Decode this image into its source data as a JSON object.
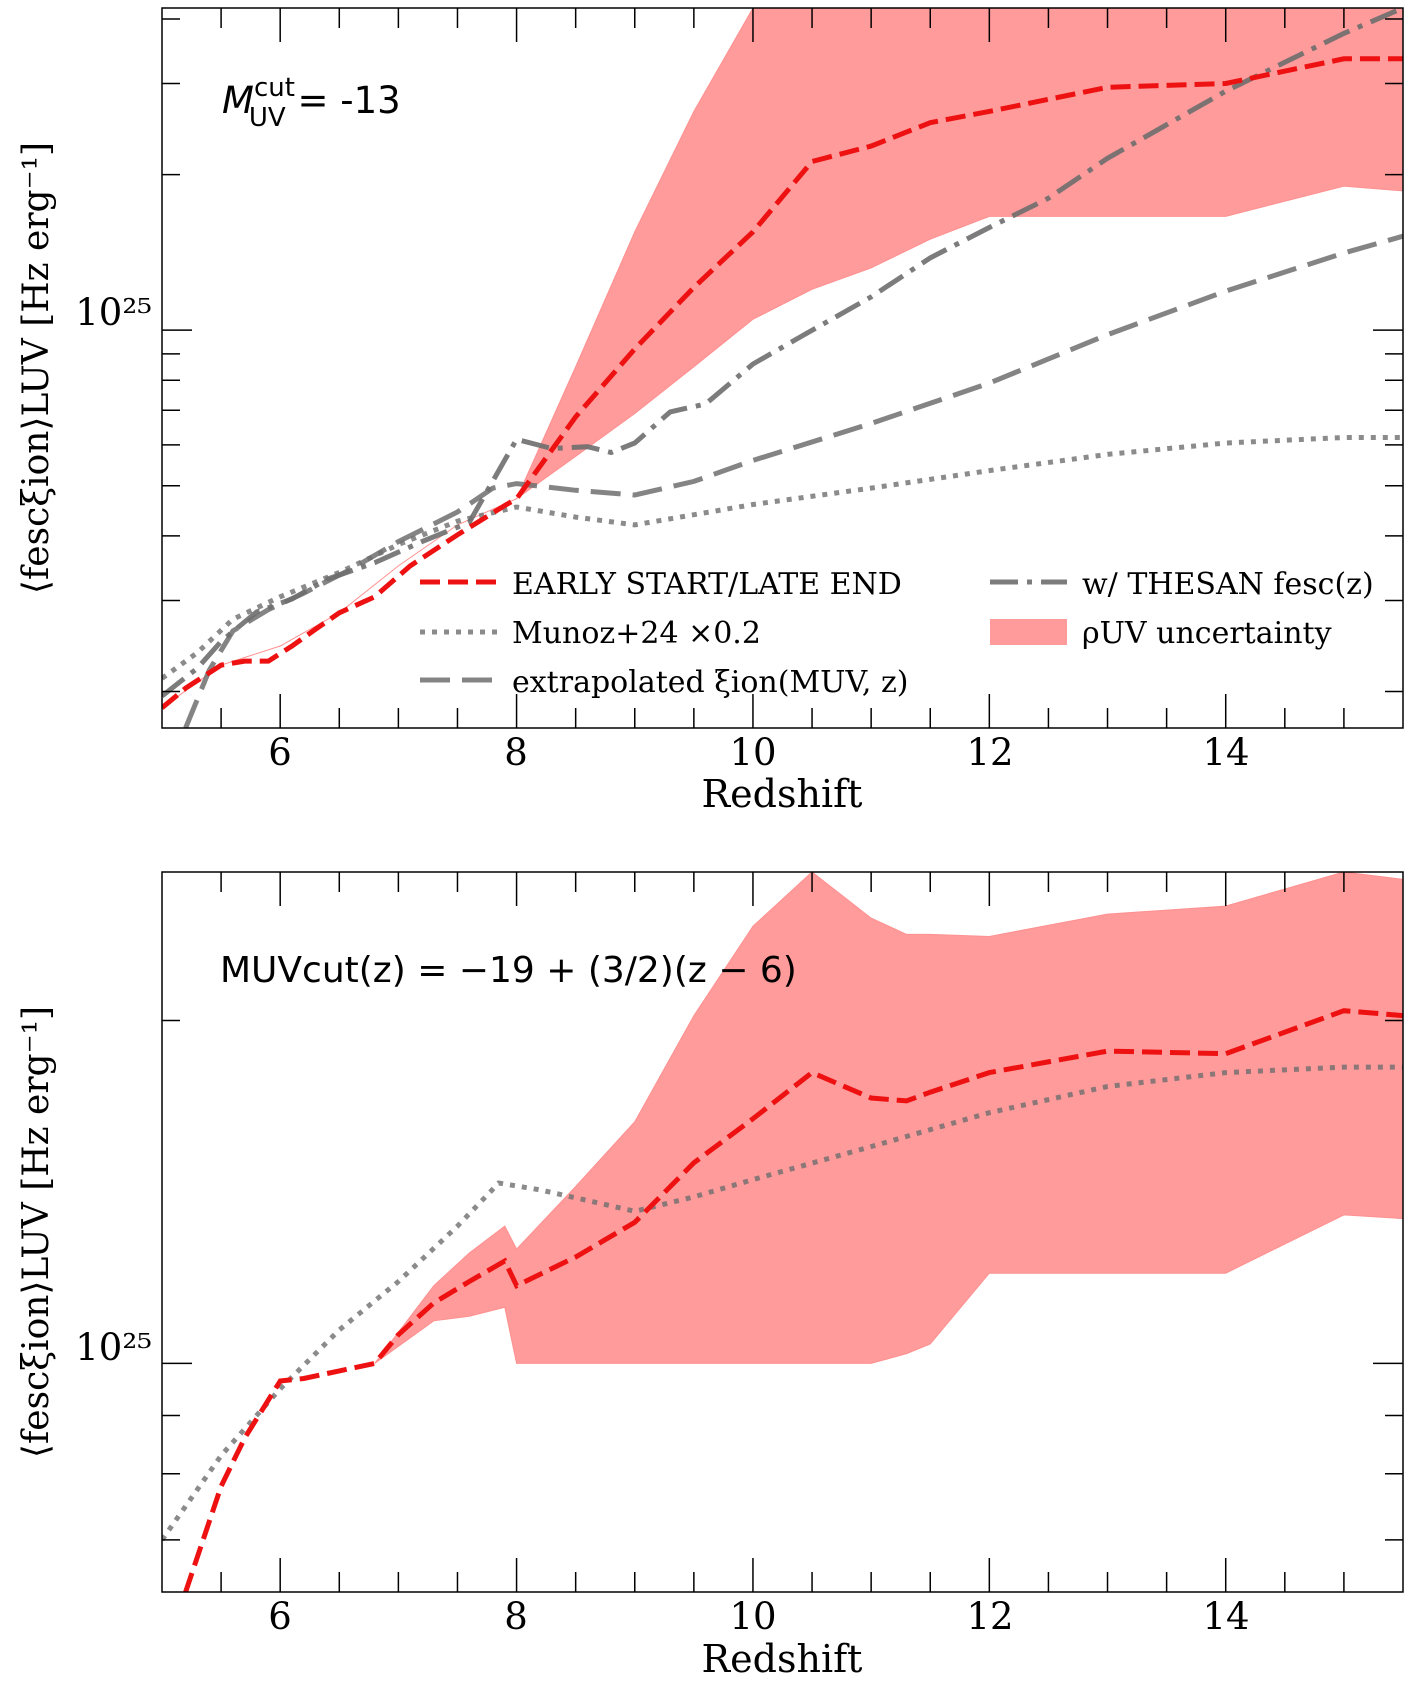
{
  "chart_data": [
    {
      "type": "line",
      "panel": "top",
      "annotation_main": "M",
      "annotation_sup": "cut",
      "annotation_sub": "UV",
      "annotation_rest": " = -13",
      "xlabel": "Redshift",
      "ylabel": "⟨fescξion⟩LUV [Hz erg⁻¹]",
      "xlim": [
        5,
        15.5
      ],
      "ylim": [
        1.7e+24,
        4.2e+25
      ],
      "yscale": "log",
      "xticks": [
        "6",
        "8",
        "10",
        "12",
        "14"
      ],
      "ytick_label": "10²⁵",
      "colors": {
        "fiducial": "#ee1111",
        "band": "#ff9090",
        "gray": "#7a7a7a"
      },
      "legend": [
        {
          "key": "fiducial",
          "label": "EARLY START/LATE END"
        },
        {
          "key": "munoz",
          "label": "Munoz+24 ×0.2"
        },
        {
          "key": "extrap",
          "label": "extrapolated ξion(MUV, z)"
        },
        {
          "key": "thesan",
          "label": "w/ THESAN fesc(z)"
        },
        {
          "key": "band",
          "label": "ρUV uncertainty"
        }
      ],
      "series": [
        {
          "name": "EARLY START/LATE END",
          "style": "red-dashed",
          "x": [
            5,
            5.2,
            5.5,
            5.7,
            5.9,
            6.1,
            6.3,
            6.5,
            6.8,
            7.1,
            7.5,
            7.9,
            8.0,
            8.5,
            9.0,
            9.5,
            10.0,
            10.5,
            11.0,
            11.5,
            12.0,
            13.0,
            14.0,
            15.0,
            15.5
          ],
          "y": [
            1.86e+24,
            2.03e+24,
            2.25e+24,
            2.29e+24,
            2.29e+24,
            2.45e+24,
            2.64e+24,
            2.84e+24,
            3.05e+24,
            3.5e+24,
            4.02e+24,
            4.58e+24,
            4.72e+24,
            6.8e+24,
            9.2e+24,
            1.21e+25,
            1.55e+25,
            2.12e+25,
            2.27e+25,
            2.52e+25,
            2.65e+25,
            2.95e+25,
            3e+25,
            3.35e+25,
            3.35e+25
          ]
        },
        {
          "name": "Munoz+24 ×0.2",
          "style": "gray-dotted",
          "x": [
            5,
            5.3,
            5.6,
            6.0,
            6.5,
            7.0,
            7.5,
            8.0,
            8.5,
            9.0,
            10.0,
            11.0,
            12.0,
            13.0,
            14.0,
            15.0,
            15.5
          ],
          "y": [
            2.12e+24,
            2.38e+24,
            2.76e+24,
            3.05e+24,
            3.4e+24,
            3.85e+24,
            4.27e+24,
            4.55e+24,
            4.35e+24,
            4.2e+24,
            4.6e+24,
            4.95e+24,
            5.35e+24,
            5.75e+24,
            6.05e+24,
            6.2e+24,
            6.2e+24
          ]
        },
        {
          "name": "extrapolated ξion(MUV, z)",
          "style": "gray-dashed",
          "x": [
            5.2,
            5.4,
            5.6,
            5.9,
            6.2,
            6.6,
            7.0,
            7.5,
            7.8,
            8.0,
            8.5,
            9.0,
            9.5,
            10.0,
            11.0,
            12.0,
            13.0,
            14.0,
            15.0,
            15.5
          ],
          "y": [
            1.7e+24,
            2.2e+24,
            2.62e+24,
            2.88e+24,
            3.1e+24,
            3.45e+24,
            3.9e+24,
            4.45e+24,
            4.95e+24,
            5.05e+24,
            4.9e+24,
            4.8e+24,
            5.1e+24,
            5.6e+24,
            6.6e+24,
            7.9e+24,
            9.8e+24,
            1.19e+25,
            1.41e+25,
            1.52e+25
          ]
        },
        {
          "name": "w/ THESAN fesc(z)",
          "style": "gray-dashdot",
          "x": [
            5,
            5.3,
            5.5,
            5.8,
            6.1,
            6.4,
            6.8,
            7.2,
            7.6,
            8.0,
            8.3,
            8.6,
            8.8,
            9.0,
            9.3,
            9.6,
            10.0,
            10.4,
            11.0,
            11.5,
            12.0,
            12.5,
            13.0,
            14.0,
            15.0,
            15.5
          ],
          "y": [
            1.96e+24,
            2.22e+24,
            2.5e+24,
            2.85e+24,
            3.02e+24,
            3.3e+24,
            3.55e+24,
            3.9e+24,
            4.25e+24,
            6.15e+24,
            5.9e+24,
            5.95e+24,
            5.8e+24,
            6.05e+24,
            6.95e+24,
            7.2e+24,
            8.6e+24,
            9.7e+24,
            1.16e+25,
            1.38e+25,
            1.58e+25,
            1.8e+25,
            2.15e+25,
            2.9e+25,
            3.75e+25,
            4.2e+25
          ]
        }
      ],
      "band": {
        "name": "ρUV uncertainty",
        "x": [
          5,
          5.5,
          6.0,
          6.5,
          7.0,
          7.5,
          8.0,
          8.5,
          9.0,
          9.5,
          10.0,
          10.5,
          11.0,
          11.5,
          12.0,
          13.0,
          14.0,
          15.0,
          15.5
        ],
        "upper": [
          1.86e+24,
          2.25e+24,
          2.45e+24,
          2.84e+24,
          3.5e+24,
          4.2e+24,
          4.72e+24,
          8.5e+24,
          1.55e+25,
          2.65e+25,
          4.2e+25,
          4.2e+25,
          4.2e+25,
          4.2e+25,
          4.2e+25,
          4.2e+25,
          4.2e+25,
          4.2e+25,
          4.2e+25
        ],
        "lower": [
          1.86e+24,
          2.25e+24,
          2.45e+24,
          2.84e+24,
          3.5e+24,
          4.2e+24,
          4.72e+24,
          5.7e+24,
          6.9e+24,
          8.5e+24,
          1.05e+25,
          1.2e+25,
          1.32e+25,
          1.5e+25,
          1.66e+25,
          1.66e+25,
          1.66e+25,
          1.9e+25,
          1.86e+25
        ]
      }
    },
    {
      "type": "line",
      "panel": "bottom",
      "annotation": "MUVcut(z) = −19 + (3/2)(z − 6)",
      "xlabel": "Redshift",
      "ylabel": "⟨fescξion⟩LUV [Hz erg⁻¹]",
      "xlim": [
        5,
        15.5
      ],
      "ylim": [
        6.3e+24,
        2.7e+25
      ],
      "yscale": "log",
      "xticks": [
        "6",
        "8",
        "10",
        "12",
        "14"
      ],
      "ytick_label": "10²⁵",
      "series": [
        {
          "name": "EARLY START/LATE END",
          "style": "red-dashed",
          "x": [
            5.2,
            5.5,
            5.7,
            6.0,
            6.2,
            6.5,
            6.8,
            7.0,
            7.3,
            7.6,
            7.9,
            8.0,
            8.5,
            9.0,
            9.5,
            10.0,
            10.5,
            11.0,
            11.3,
            11.5,
            12.0,
            13.0,
            14.0,
            15.0,
            15.5
          ],
          "y": [
            6.3e+24,
            7.8e+24,
            8.6e+24,
            9.65e+24,
            9.7e+24,
            9.85e+24,
            1e+25,
            1.06e+25,
            1.13e+25,
            1.18e+25,
            1.23e+25,
            1.17e+25,
            1.24e+25,
            1.33e+25,
            1.5e+25,
            1.64e+25,
            1.8e+25,
            1.71e+25,
            1.7e+25,
            1.73e+25,
            1.8e+25,
            1.88e+25,
            1.87e+25,
            2.04e+25,
            2.02e+25
          ]
        },
        {
          "name": "Munoz+24 ×0.2",
          "style": "gray-dotted",
          "x": [
            5,
            5.5,
            6.0,
            6.5,
            7.0,
            7.5,
            7.85,
            8.2,
            8.6,
            9.0,
            9.5,
            10.0,
            11.0,
            12.0,
            13.0,
            14.0,
            15.0,
            15.5
          ],
          "y": [
            7e+24,
            8.3e+24,
            9.5e+24,
            1.07e+25,
            1.18e+25,
            1.32e+25,
            1.44e+25,
            1.42e+25,
            1.39e+25,
            1.36e+25,
            1.4e+25,
            1.45e+25,
            1.55e+25,
            1.66e+25,
            1.75e+25,
            1.8e+25,
            1.82e+25,
            1.82e+25
          ]
        }
      ],
      "band": {
        "name": "ρUV uncertainty",
        "x": [
          6.8,
          7.3,
          7.6,
          7.9,
          8.0,
          8.5,
          9.0,
          9.5,
          10.0,
          10.5,
          11.0,
          11.3,
          11.5,
          12.0,
          13.0,
          14.0,
          15.0,
          15.5
        ],
        "upper": [
          1e+25,
          1.17e+25,
          1.25e+25,
          1.32e+25,
          1.26e+25,
          1.43e+25,
          1.63e+25,
          2.02e+25,
          2.42e+25,
          2.7e+25,
          2.46e+25,
          2.38e+25,
          2.38e+25,
          2.37e+25,
          2.48e+25,
          2.52e+25,
          2.7e+25,
          2.66e+25
        ],
        "lower": [
          1e+25,
          1.09e+25,
          1.1e+25,
          1.12e+25,
          1e+25,
          1e+25,
          1e+25,
          1e+25,
          1e+25,
          1e+25,
          1e+25,
          1.02e+25,
          1.04e+25,
          1.2e+25,
          1.2e+25,
          1.2e+25,
          1.35e+25,
          1.34e+25
        ]
      }
    }
  ]
}
